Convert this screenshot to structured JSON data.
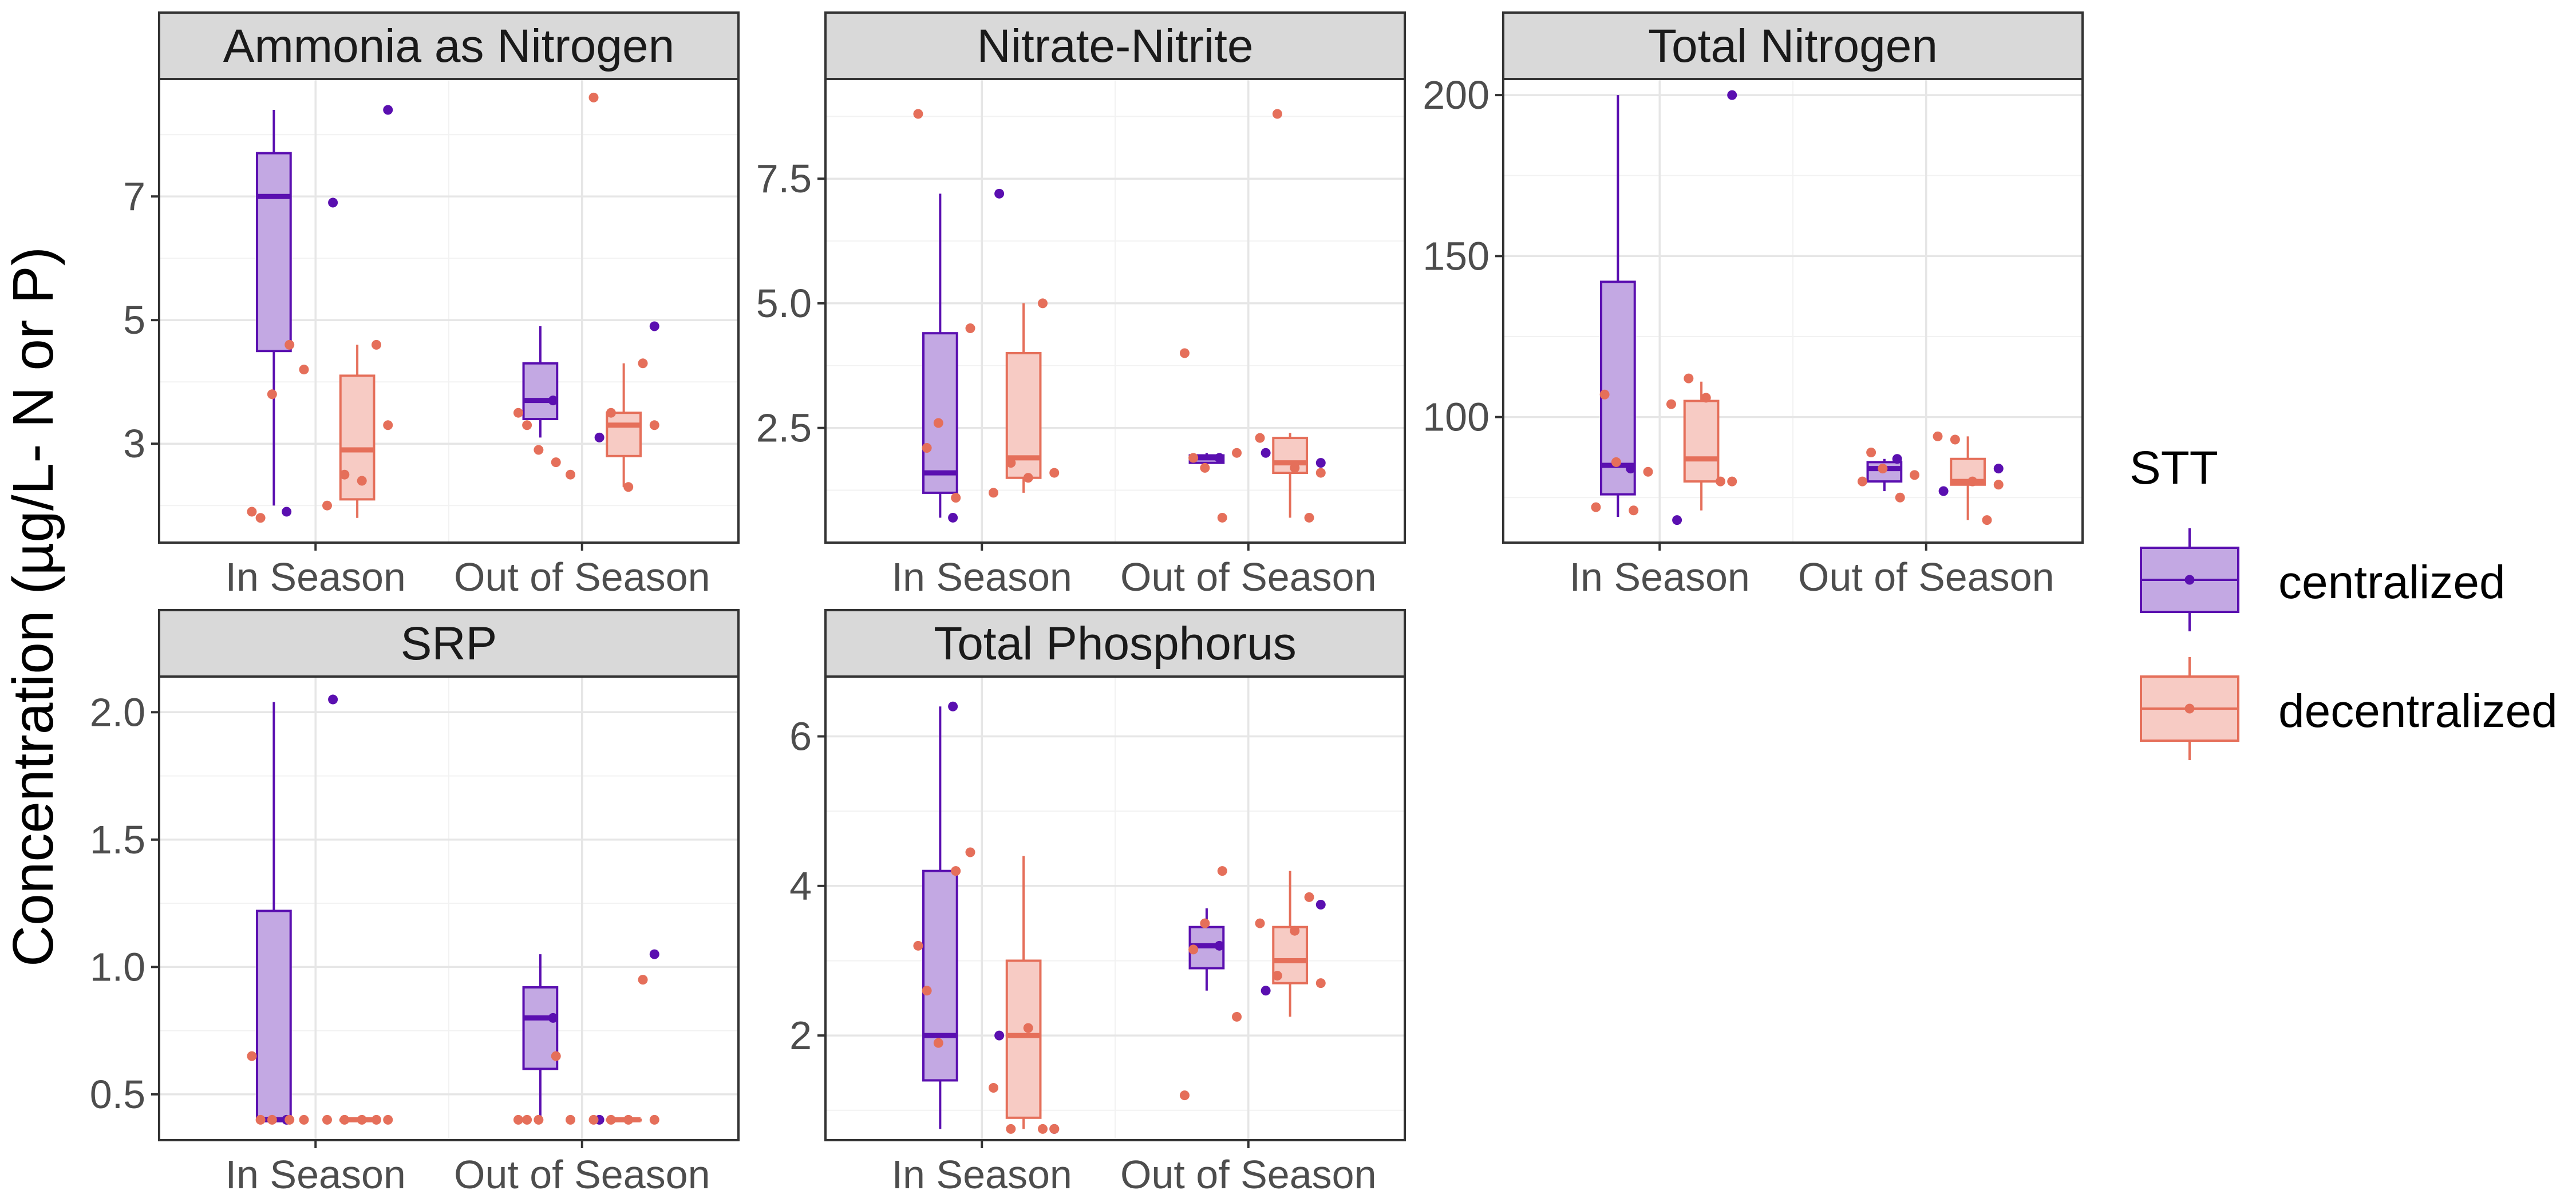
{
  "chart_data": {
    "type": "boxplot",
    "ylabel": "Concentration (µg/L- N or P)",
    "categories": [
      "In Season",
      "Out of Season"
    ],
    "legend": {
      "title": "STT",
      "position": "right",
      "items": [
        {
          "name": "centralized",
          "color": "#5a0fb0",
          "fill": "#c3a8e3"
        },
        {
          "name": "decentralized",
          "color": "#e56f5a",
          "fill": "#f7cbc4"
        }
      ]
    },
    "grid": true,
    "panels": [
      {
        "title": "Ammonia as Nitrogen",
        "ylim": [
          1.4,
          8.9
        ],
        "yticks": [
          3,
          5,
          7
        ],
        "boxes": [
          {
            "category": "In Season",
            "group": "centralized",
            "min": 2.0,
            "q1": 4.5,
            "median": 7.0,
            "q3": 7.7,
            "max": 8.4
          },
          {
            "category": "In Season",
            "group": "decentralized",
            "min": 1.8,
            "q1": 2.1,
            "median": 2.9,
            "q3": 4.1,
            "max": 4.6
          },
          {
            "category": "Out of Season",
            "group": "centralized",
            "min": 3.1,
            "q1": 3.4,
            "median": 3.7,
            "q3": 4.3,
            "max": 4.9
          },
          {
            "category": "Out of Season",
            "group": "decentralized",
            "min": 2.3,
            "q1": 2.8,
            "median": 3.3,
            "q3": 3.5,
            "max": 4.3
          }
        ],
        "points": [
          {
            "category": "In Season",
            "group": "centralized",
            "values": [
              1.9,
              6.9,
              8.4
            ]
          },
          {
            "category": "In Season",
            "group": "decentralized",
            "values": [
              1.9,
              1.8,
              3.8,
              4.6,
              4.2,
              2.0,
              2.5,
              2.4,
              4.6,
              3.3
            ]
          },
          {
            "category": "Out of Season",
            "group": "centralized",
            "values": [
              3.7,
              3.1,
              4.9
            ]
          },
          {
            "category": "Out of Season",
            "group": "decentralized",
            "values": [
              3.5,
              3.3,
              2.9,
              2.7,
              2.5,
              8.6,
              3.5,
              2.3,
              4.3,
              3.3
            ]
          }
        ]
      },
      {
        "title": "Nitrate-Nitrite",
        "ylim": [
          0.2,
          9.5
        ],
        "yticks": [
          2.5,
          5.0,
          7.5
        ],
        "boxes": [
          {
            "category": "In Season",
            "group": "centralized",
            "min": 0.7,
            "q1": 1.2,
            "median": 1.6,
            "q3": 4.4,
            "max": 7.2
          },
          {
            "category": "In Season",
            "group": "decentralized",
            "min": 1.2,
            "q1": 1.5,
            "median": 1.9,
            "q3": 4.0,
            "max": 5.0
          },
          {
            "category": "Out of Season",
            "group": "centralized",
            "min": 1.8,
            "q1": 1.8,
            "median": 1.9,
            "q3": 1.95,
            "max": 2.0
          },
          {
            "category": "Out of Season",
            "group": "decentralized",
            "min": 0.7,
            "q1": 1.6,
            "median": 1.8,
            "q3": 2.3,
            "max": 2.4
          }
        ],
        "points": [
          {
            "category": "In Season",
            "group": "centralized",
            "values": [
              0.7,
              7.2
            ]
          },
          {
            "category": "In Season",
            "group": "decentralized",
            "values": [
              8.8,
              2.1,
              2.6,
              1.1,
              4.5,
              1.2,
              1.8,
              1.5,
              5.0,
              1.6
            ]
          },
          {
            "category": "Out of Season",
            "group": "centralized",
            "values": [
              1.9,
              2.0,
              1.8
            ]
          },
          {
            "category": "Out of Season",
            "group": "decentralized",
            "values": [
              4.0,
              1.9,
              1.7,
              0.7,
              2.0,
              2.3,
              8.8,
              1.7,
              0.7,
              1.6
            ]
          }
        ]
      },
      {
        "title": "Total Nitrogen",
        "ylim": [
          61,
          205
        ],
        "yticks": [
          100,
          150,
          200
        ],
        "boxes": [
          {
            "category": "In Season",
            "group": "centralized",
            "min": 69,
            "q1": 76,
            "median": 85,
            "q3": 142,
            "max": 200
          },
          {
            "category": "In Season",
            "group": "decentralized",
            "min": 71,
            "q1": 80,
            "median": 87,
            "q3": 105,
            "max": 111
          },
          {
            "category": "Out of Season",
            "group": "centralized",
            "min": 77,
            "q1": 80,
            "median": 84,
            "q3": 86,
            "max": 87
          },
          {
            "category": "Out of Season",
            "group": "decentralized",
            "min": 68,
            "q1": 79,
            "median": 80,
            "q3": 87,
            "max": 94
          }
        ],
        "points": [
          {
            "category": "In Season",
            "group": "centralized",
            "values": [
              84,
              68,
              200
            ]
          },
          {
            "category": "In Season",
            "group": "decentralized",
            "values": [
              72,
              107,
              86,
              71,
              83,
              104,
              112,
              106,
              80,
              80
            ]
          },
          {
            "category": "Out of Season",
            "group": "centralized",
            "values": [
              87,
              77,
              84
            ]
          },
          {
            "category": "Out of Season",
            "group": "decentralized",
            "values": [
              80,
              89,
              84,
              75,
              82,
              94,
              93,
              80,
              68,
              79
            ]
          }
        ]
      },
      {
        "title": "SRP",
        "ylim": [
          0.32,
          2.14
        ],
        "yticks": [
          0.5,
          1.0,
          1.5,
          2.0
        ],
        "boxes": [
          {
            "category": "In Season",
            "group": "centralized",
            "min": 0.4,
            "q1": 0.4,
            "median": 0.4,
            "q3": 1.22,
            "max": 2.04
          },
          {
            "category": "In Season",
            "group": "decentralized",
            "min": 0.4,
            "q1": 0.4,
            "median": 0.4,
            "q3": 0.4,
            "max": 0.4
          },
          {
            "category": "Out of Season",
            "group": "centralized",
            "min": 0.4,
            "q1": 0.6,
            "median": 0.8,
            "q3": 0.92,
            "max": 1.05
          },
          {
            "category": "Out of Season",
            "group": "decentralized",
            "min": 0.4,
            "q1": 0.4,
            "median": 0.4,
            "q3": 0.4,
            "max": 0.4
          }
        ],
        "points": [
          {
            "category": "In Season",
            "group": "centralized",
            "values": [
              0.4,
              2.05
            ]
          },
          {
            "category": "In Season",
            "group": "decentralized",
            "values": [
              0.65,
              0.4,
              0.4,
              0.4,
              0.4,
              0.4,
              0.4,
              0.4,
              0.4,
              0.4
            ]
          },
          {
            "category": "Out of Season",
            "group": "centralized",
            "values": [
              0.8,
              0.4,
              1.05
            ]
          },
          {
            "category": "Out of Season",
            "group": "decentralized",
            "values": [
              0.4,
              0.4,
              0.4,
              0.65,
              0.4,
              0.4,
              0.4,
              0.4,
              0.95,
              0.4
            ]
          }
        ]
      },
      {
        "title": "Total Phosphorus",
        "ylim": [
          0.6,
          6.8
        ],
        "yticks": [
          2,
          4,
          6
        ],
        "boxes": [
          {
            "category": "In Season",
            "group": "centralized",
            "min": 0.75,
            "q1": 1.4,
            "median": 2.0,
            "q3": 4.2,
            "max": 6.4
          },
          {
            "category": "In Season",
            "group": "decentralized",
            "min": 0.75,
            "q1": 0.9,
            "median": 2.0,
            "q3": 3.0,
            "max": 4.4
          },
          {
            "category": "Out of Season",
            "group": "centralized",
            "min": 2.6,
            "q1": 2.9,
            "median": 3.2,
            "q3": 3.45,
            "max": 3.7
          },
          {
            "category": "Out of Season",
            "group": "decentralized",
            "min": 2.25,
            "q1": 2.7,
            "median": 3.0,
            "q3": 3.45,
            "max": 4.2
          }
        ],
        "points": [
          {
            "category": "In Season",
            "group": "centralized",
            "values": [
              6.4,
              2.0,
              0.75
            ]
          },
          {
            "category": "In Season",
            "group": "decentralized",
            "values": [
              3.2,
              2.6,
              1.9,
              4.2,
              4.45,
              1.3,
              0.75,
              2.1,
              0.75,
              0.75
            ]
          },
          {
            "category": "Out of Season",
            "group": "centralized",
            "values": [
              3.2,
              2.6,
              3.75
            ]
          },
          {
            "category": "Out of Season",
            "group": "decentralized",
            "values": [
              1.2,
              3.15,
              3.5,
              4.2,
              2.25,
              3.5,
              2.8,
              3.4,
              3.85,
              2.7
            ]
          }
        ]
      }
    ]
  }
}
